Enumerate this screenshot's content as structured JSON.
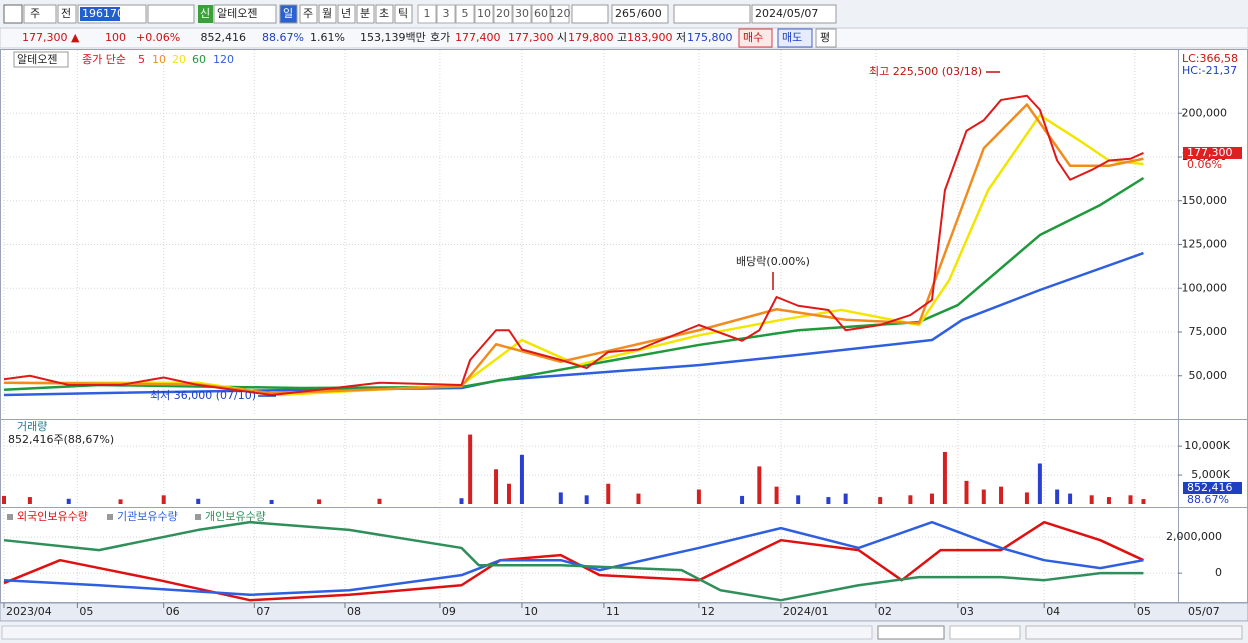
{
  "toolbar": {
    "period_type": "주",
    "prev": "전",
    "code": "196170",
    "credit": "신",
    "name": "알테오젠",
    "periods": [
      "일",
      "주",
      "월",
      "년",
      "분",
      "초",
      "틱"
    ],
    "intervals": [
      "1",
      "3",
      "5",
      "10",
      "20",
      "30",
      "60",
      "120"
    ],
    "count": "265",
    "max_count": "/600",
    "date": "2024/05/07"
  },
  "quote": {
    "price": "177,300 ▲",
    "change": "100",
    "change_pct": "+0.06%",
    "volume": "852,416",
    "volume_ratio": "88.67%",
    "turnover": "1.61%",
    "amount": "153,139백만",
    "ask_label": "호가",
    "ask": "177,400",
    "bid": "177,300",
    "open_label": "시",
    "open": "179,800",
    "high_label": "고",
    "high": "183,900",
    "low_label": "저",
    "low": "175,800",
    "buy": "매수",
    "sell": "매도",
    "avg": "평"
  },
  "x_axis": {
    "xlim": [
      0,
      272
    ],
    "ticks": [
      {
        "value": 0,
        "label": "2023/04"
      },
      {
        "value": 17,
        "label": "05"
      },
      {
        "value": 37,
        "label": "06"
      },
      {
        "value": 58,
        "label": "07"
      },
      {
        "value": 79,
        "label": "08"
      },
      {
        "value": 101,
        "label": "09"
      },
      {
        "value": 120,
        "label": "10"
      },
      {
        "value": 139,
        "label": "11"
      },
      {
        "value": 161,
        "label": "12"
      },
      {
        "value": 180,
        "label": "2024/01"
      },
      {
        "value": 202,
        "label": "02"
      },
      {
        "value": 221,
        "label": "03"
      },
      {
        "value": 241,
        "label": "04"
      },
      {
        "value": 262,
        "label": "05"
      }
    ],
    "end_label": "05/07"
  },
  "price": {
    "name": "알테오젠",
    "legend_label": "종가 단순",
    "ylim": [
      27000,
      235000
    ],
    "yticks": [
      {
        "value": 50000,
        "label": "50,000"
      },
      {
        "value": 75000,
        "label": "75,000"
      },
      {
        "value": 100000,
        "label": "100,000"
      },
      {
        "value": 125000,
        "label": "125,000"
      },
      {
        "value": 150000,
        "label": "150,000"
      },
      {
        "value": 175000,
        "label": "175,000"
      },
      {
        "value": 200000,
        "label": "200,000"
      }
    ],
    "series": [
      {
        "name": "5",
        "color": "#e01818",
        "x": [
          0,
          6,
          15,
          27,
          37,
          45,
          62,
          73,
          87,
          106,
          108,
          114,
          117,
          120,
          129,
          135,
          140,
          147,
          161,
          171,
          175,
          179,
          184,
          191,
          195,
          203,
          210,
          215,
          218,
          223,
          227,
          231,
          237,
          240,
          244,
          247,
          252,
          256,
          261,
          264
        ],
        "values": [
          48000,
          50000,
          44700,
          44700,
          49000,
          44700,
          39000,
          42000,
          46000,
          44700,
          59000,
          76000,
          76000,
          65000,
          59000,
          54400,
          63600,
          65000,
          79000,
          70000,
          76000,
          95000,
          90000,
          87600,
          76000,
          79000,
          84700,
          93300,
          156000,
          190000,
          196000,
          207600,
          210000,
          202000,
          173000,
          162000,
          167600,
          173000,
          174000,
          177300
        ]
      },
      {
        "name": "10",
        "color": "#f08c1e",
        "x": [
          0,
          45,
          62,
          106,
          114,
          129,
          161,
          179,
          195,
          212,
          218,
          227,
          237,
          247,
          256,
          264
        ],
        "values": [
          46000,
          45000,
          40000,
          44000,
          68000,
          58000,
          76000,
          88000,
          82000,
          80000,
          120000,
          180000,
          205000,
          170000,
          170000,
          174000
        ]
      },
      {
        "name": "20",
        "color": "#f2e600",
        "x": [
          0,
          45,
          64,
          106,
          120,
          133,
          161,
          180,
          194,
          212,
          219,
          228,
          240,
          249,
          256,
          264
        ],
        "values": [
          46000,
          46000,
          39000,
          44700,
          70400,
          56100,
          73100,
          81900,
          87600,
          79000,
          104700,
          156000,
          198900,
          184700,
          173000,
          171000
        ]
      },
      {
        "name": "60",
        "color": "#1e9a3c",
        "x": [
          0,
          22,
          69,
          106,
          122,
          161,
          184,
          212,
          221,
          240,
          254,
          264
        ],
        "values": [
          42000,
          44700,
          43000,
          43600,
          50400,
          67600,
          76000,
          80700,
          90400,
          130400,
          147600,
          163000
        ]
      },
      {
        "name": "120",
        "color": "#2e5fe0",
        "x": [
          0,
          22,
          69,
          106,
          115,
          161,
          184,
          215,
          222,
          240,
          264
        ],
        "values": [
          39000,
          40100,
          41900,
          43000,
          47600,
          56100,
          61900,
          70400,
          81900,
          99000,
          120100
        ]
      }
    ],
    "high_note": "최고 225,500 (03/18)",
    "low_note": "최저 36,000 (07/10)",
    "dividend_note": "배당락(0.00%)",
    "lc": "LC:366,58",
    "hc": "HC:-21,37",
    "last": "177,300",
    "last_pct": "0.06%"
  },
  "volume": {
    "title": "거래량",
    "summary": "852,416주(88,67%)",
    "ylim": [
      0,
      14000
    ],
    "yticks": [
      {
        "value": 5000,
        "label": "5,000K"
      },
      {
        "value": 10000,
        "label": "10,000K"
      }
    ],
    "x": [
      0,
      6,
      15,
      27,
      37,
      45,
      62,
      73,
      87,
      106,
      108,
      114,
      117,
      120,
      129,
      135,
      140,
      147,
      161,
      171,
      175,
      179,
      184,
      191,
      195,
      203,
      210,
      215,
      218,
      223,
      227,
      231,
      237,
      240,
      244,
      247,
      252,
      256,
      261,
      264
    ],
    "values": [
      1400,
      1200,
      900,
      800,
      1500,
      900,
      700,
      800,
      900,
      1000,
      12000,
      6000,
      3500,
      8500,
      2000,
      1500,
      3500,
      1800,
      2500,
      1400,
      6500,
      3000,
      1500,
      1200,
      1800,
      1200,
      1500,
      1800,
      9000,
      4000,
      2500,
      3000,
      2000,
      7000,
      2500,
      1800,
      1500,
      1200,
      1500,
      852.416
    ],
    "up_color": "#d42020",
    "down_color": "#2a3fd0",
    "last": "852,416",
    "last_pct": "88.67%"
  },
  "holdings": {
    "ylim": [
      -1600000,
      3450000
    ],
    "yticks": [
      0,
      {
        "value": 2000000,
        "label": "2,000,000"
      }
    ],
    "series": [
      {
        "name": "외국인보유수량",
        "color": "#e01010",
        "x": [
          0,
          13,
          36,
          57,
          80,
          106,
          115,
          129,
          138,
          161,
          180,
          198,
          208,
          217,
          231,
          241,
          254,
          264
        ],
        "values": [
          -550000,
          720000,
          -390000,
          -1500000,
          -1200000,
          -670000,
          720000,
          1000000,
          -110000,
          -390000,
          1830000,
          1280000,
          -390000,
          1280000,
          1280000,
          2830000,
          1830000,
          720000
        ]
      },
      {
        "name": "기관보유수량",
        "color": "#2e5fe0",
        "x": [
          0,
          22,
          57,
          80,
          106,
          115,
          129,
          138,
          161,
          180,
          198,
          215,
          231,
          241,
          254,
          264
        ],
        "values": [
          -390000,
          -670000,
          -1200000,
          -950000,
          -110000,
          720000,
          720000,
          170000,
          1400000,
          2500000,
          1400000,
          2830000,
          1400000,
          720000,
          280000,
          720000
        ]
      },
      {
        "name": "개인보유수량",
        "color": "#2f8f5a",
        "x": [
          0,
          22,
          45,
          57,
          80,
          106,
          110,
          129,
          157,
          166,
          180,
          198,
          212,
          231,
          241,
          254,
          264
        ],
        "values": [
          1830000,
          1280000,
          2400000,
          2830000,
          2400000,
          1400000,
          440000,
          440000,
          170000,
          -950000,
          -1500000,
          -670000,
          -220000,
          -220000,
          -390000,
          0,
          0
        ]
      }
    ]
  }
}
